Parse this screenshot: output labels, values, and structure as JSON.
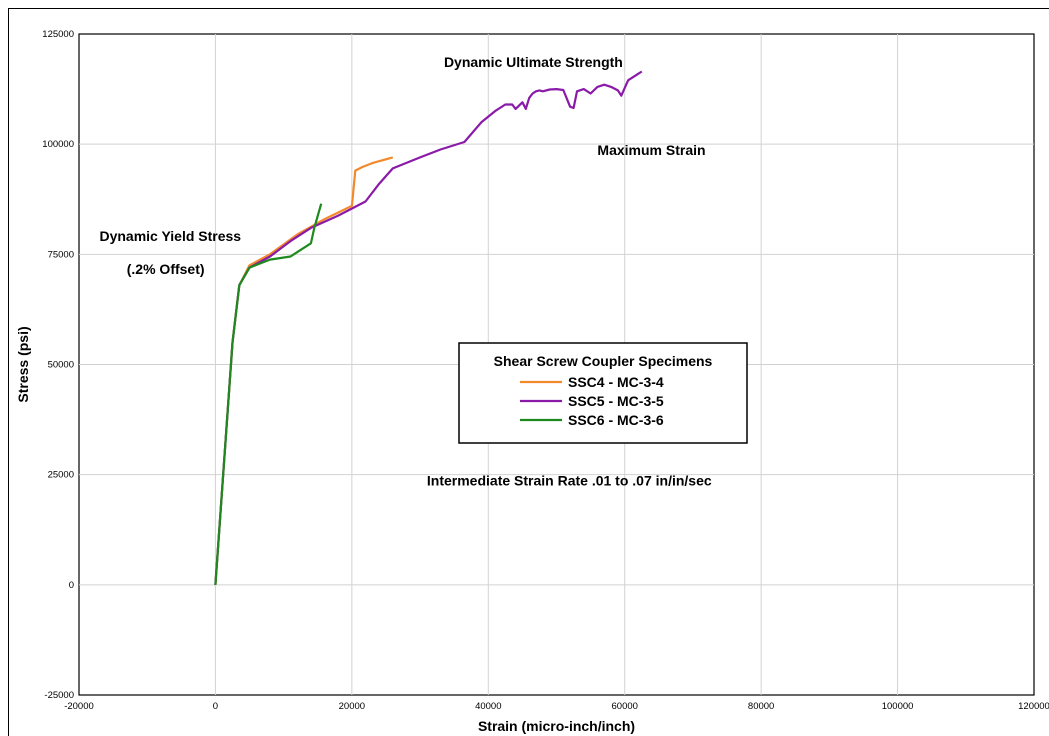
{
  "chart_data": {
    "type": "line",
    "title": "",
    "xlabel": "Strain (micro-inch/inch)",
    "ylabel": "Stress (psi)",
    "xlim": [
      -20000,
      120000
    ],
    "ylim": [
      -25000,
      125000
    ],
    "grid": true,
    "x_ticks": [
      -20000,
      0,
      20000,
      40000,
      60000,
      80000,
      100000,
      120000
    ],
    "x_tick_labels": [
      "-20000",
      "0",
      "20000",
      "40000",
      "60000",
      "80000",
      "100000",
      "120000"
    ],
    "y_ticks": [
      -25000,
      0,
      25000,
      50000,
      75000,
      100000,
      125000
    ],
    "y_tick_labels": [
      "-25000",
      "0",
      "25000",
      "50000",
      "75000",
      "100000",
      "125000"
    ],
    "legend": {
      "title": "Shear Screw Coupler Specimens",
      "placement": "center"
    },
    "annotations": [
      {
        "text": "Dynamic Ultimate Strength",
        "x": 33500,
        "y": 117500
      },
      {
        "text": "Maximum Strain",
        "x": 56000,
        "y": 97500
      },
      {
        "text": "Dynamic Yield Stress",
        "x": -17000,
        "y": 78000
      },
      {
        "text": "(.2% Offset)",
        "x": -13000,
        "y": 70500
      },
      {
        "text": "Intermediate Strain Rate .01 to .07 in/in/sec",
        "x": 31000,
        "y": 22500
      }
    ],
    "series": [
      {
        "name": "SSC4 - MC-3-4",
        "color": "#f28a2c",
        "x": [
          0,
          2500,
          3500,
          5000,
          8000,
          12000,
          16000,
          20000,
          20500,
          21500,
          23000,
          26000
        ],
        "y": [
          0,
          55000,
          68000,
          72500,
          75000,
          79500,
          83000,
          86000,
          94000,
          94800,
          95700,
          97000
        ]
      },
      {
        "name": "SSC5 - MC-3-5",
        "color": "#8a1aa8",
        "x": [
          0,
          2500,
          3500,
          5000,
          8000,
          11000,
          14000,
          18000,
          22000,
          24000,
          26000,
          30000,
          33000,
          36500,
          39000,
          41000,
          42500,
          43500,
          44000,
          45000,
          45500,
          46000,
          46500,
          47000,
          47500,
          48000,
          49000,
          50000,
          51000,
          52000,
          52500,
          53000,
          54000,
          55000,
          56000,
          57000,
          58000,
          59000,
          59500,
          60500,
          61500,
          62500
        ],
        "y": [
          0,
          55000,
          68000,
          72000,
          74500,
          78000,
          81000,
          83800,
          87000,
          91000,
          94500,
          97000,
          98800,
          100500,
          105000,
          107500,
          109000,
          109000,
          108000,
          109500,
          108000,
          110500,
          111500,
          112000,
          112200,
          112000,
          112400,
          112500,
          112300,
          108500,
          108200,
          112000,
          112500,
          111500,
          113000,
          113500,
          113000,
          112200,
          111000,
          114500,
          115500,
          116500
        ]
      },
      {
        "name": "SSC6 - MC-3-6",
        "color": "#1e8a1e",
        "x": [
          0,
          2500,
          3500,
          5000,
          8000,
          11000,
          12000,
          14000,
          14500,
          15500
        ],
        "y": [
          0,
          55000,
          68000,
          72000,
          73800,
          74500,
          75500,
          77500,
          81000,
          86500
        ]
      }
    ]
  }
}
